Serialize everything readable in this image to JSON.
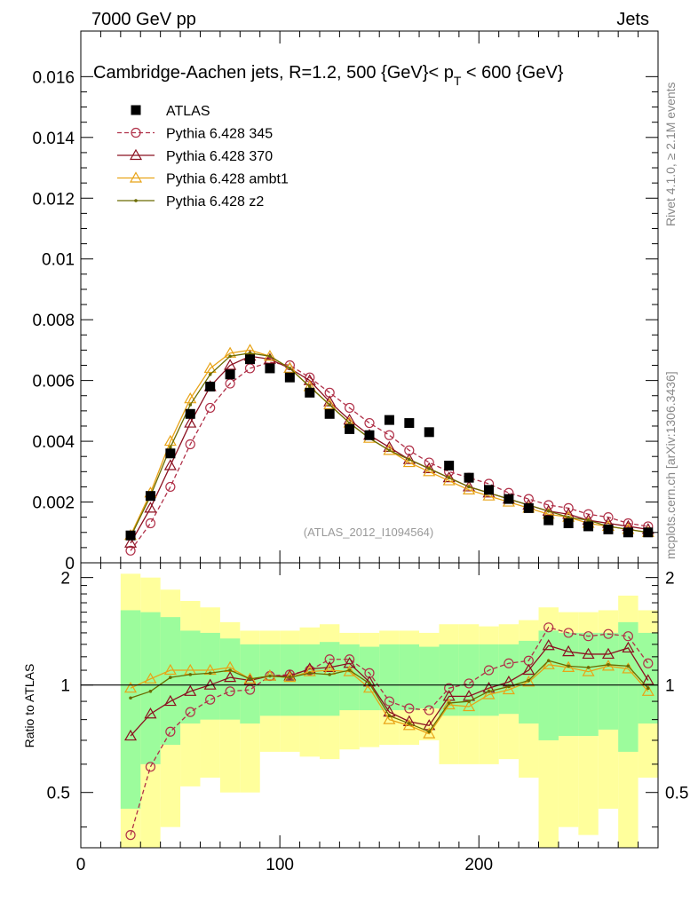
{
  "header": {
    "left": "7000 GeV pp",
    "right": "Jets"
  },
  "side_labels": {
    "rivet": "Rivet 4.1.0, ≥ 2.1M events",
    "mcplots": "mcplots.cern.ch [arXiv:1306.3436]"
  },
  "chart_data": [
    {
      "type": "scatter",
      "panel": "main",
      "title": "Cambridge-Aachen jets, R=1.2, 500 {GeV}< p_T < 600 {GeV}",
      "title_parts": {
        "main": "Cambridge-Aachen jets, R=1.2, 500 {GeV}< p",
        "sub": "T",
        "tail": " < 600 {GeV}"
      },
      "watermark": "(ATLAS_2012_I1094564)",
      "xlim": [
        0,
        290
      ],
      "ylim": [
        0,
        0.0175
      ],
      "yticks": [
        0,
        0.002,
        0.004,
        0.006,
        0.008,
        0.01,
        0.012,
        0.014,
        0.016
      ],
      "ytick_labels": [
        "0",
        "0.002",
        "0.004",
        "0.006",
        "0.008",
        "0.01",
        "0.012",
        "0.014",
        "0.016"
      ],
      "x": [
        25,
        35,
        45,
        55,
        65,
        75,
        85,
        95,
        105,
        115,
        125,
        135,
        145,
        155,
        165,
        175,
        185,
        195,
        205,
        215,
        225,
        235,
        245,
        255,
        265,
        275,
        285
      ],
      "series": [
        {
          "name": "ATLAS",
          "color": "#000000",
          "marker": "square",
          "values": [
            0.0009,
            0.0022,
            0.0036,
            0.0049,
            0.0058,
            0.0062,
            0.0067,
            0.0064,
            0.0061,
            0.0056,
            0.0049,
            0.0044,
            0.0042,
            0.0047,
            0.0046,
            0.0043,
            0.0032,
            0.0028,
            0.0024,
            0.0021,
            0.0018,
            0.0014,
            0.0013,
            0.0012,
            0.0011,
            0.001,
            0.001
          ]
        },
        {
          "name": "Pythia 6.428 345",
          "color": "#b03048",
          "marker": "circle",
          "dashed": true,
          "values": [
            0.0004,
            0.0013,
            0.0025,
            0.0039,
            0.0051,
            0.0059,
            0.0064,
            0.0066,
            0.0065,
            0.0061,
            0.0056,
            0.0051,
            0.0046,
            0.0042,
            0.0037,
            0.0033,
            0.003,
            0.0028,
            0.0026,
            0.0023,
            0.0021,
            0.0019,
            0.0018,
            0.0016,
            0.0015,
            0.0013,
            0.0012
          ]
        },
        {
          "name": "Pythia 6.428 370",
          "color": "#8b1020",
          "marker": "triangle",
          "dashed": false,
          "values": [
            0.00065,
            0.0018,
            0.0032,
            0.0046,
            0.0058,
            0.0065,
            0.0068,
            0.0067,
            0.0064,
            0.006,
            0.0053,
            0.0047,
            0.0042,
            0.0038,
            0.0034,
            0.0031,
            0.0028,
            0.0025,
            0.0023,
            0.0021,
            0.0019,
            0.0017,
            0.0016,
            0.0014,
            0.0013,
            0.0012,
            0.0011
          ]
        },
        {
          "name": "Pythia 6.428 ambt1",
          "color": "#e8a317",
          "marker": "triangle",
          "dashed": false,
          "values": [
            0.0009,
            0.0023,
            0.004,
            0.0054,
            0.0064,
            0.0069,
            0.007,
            0.0068,
            0.0064,
            0.0058,
            0.0052,
            0.0046,
            0.0041,
            0.0037,
            0.0033,
            0.003,
            0.0027,
            0.0024,
            0.0022,
            0.002,
            0.0018,
            0.0016,
            0.0015,
            0.0013,
            0.0012,
            0.0011,
            0.001
          ]
        },
        {
          "name": "Pythia 6.428 z2",
          "color": "#6b6b00",
          "marker": "dot",
          "dashed": false,
          "values": [
            0.00085,
            0.0022,
            0.0038,
            0.0052,
            0.0062,
            0.0068,
            0.0069,
            0.0068,
            0.0064,
            0.0058,
            0.0052,
            0.0046,
            0.0041,
            0.0037,
            0.0034,
            0.0031,
            0.0028,
            0.0025,
            0.0023,
            0.0021,
            0.0019,
            0.0017,
            0.0015,
            0.0014,
            0.0012,
            0.0011,
            0.001
          ]
        }
      ]
    },
    {
      "type": "line",
      "panel": "ratio",
      "ylabel": "Ratio to ATLAS",
      "xlabel": "",
      "xlim": [
        0,
        290
      ],
      "ylim": [
        0.35,
        2.2
      ],
      "xticks": [
        0,
        100,
        200
      ],
      "xtick_labels": [
        "0",
        "100",
        "200"
      ],
      "yticks": [
        0.5,
        1,
        2
      ],
      "ytick_labels": [
        "0.5",
        "1",
        "2"
      ],
      "reference": 1,
      "band_edges": [
        20,
        30,
        40,
        50,
        60,
        70,
        80,
        90,
        100,
        110,
        120,
        130,
        140,
        150,
        160,
        170,
        180,
        190,
        200,
        210,
        220,
        230,
        240,
        250,
        260,
        270,
        280,
        290
      ],
      "band_yellow": [
        [
          0.35,
          2.05
        ],
        [
          0.35,
          2.0
        ],
        [
          0.4,
          1.85
        ],
        [
          0.52,
          1.72
        ],
        [
          0.55,
          1.65
        ],
        [
          0.5,
          1.5
        ],
        [
          0.5,
          1.42
        ],
        [
          0.65,
          1.42
        ],
        [
          0.65,
          1.42
        ],
        [
          0.63,
          1.45
        ],
        [
          0.62,
          1.48
        ],
        [
          0.66,
          1.4
        ],
        [
          0.67,
          1.4
        ],
        [
          0.68,
          1.42
        ],
        [
          0.68,
          1.42
        ],
        [
          0.7,
          1.4
        ],
        [
          0.6,
          1.48
        ],
        [
          0.6,
          1.48
        ],
        [
          0.6,
          1.46
        ],
        [
          0.62,
          1.48
        ],
        [
          0.55,
          1.52
        ],
        [
          0.35,
          1.65
        ],
        [
          0.4,
          1.6
        ],
        [
          0.38,
          1.6
        ],
        [
          0.45,
          1.62
        ],
        [
          0.35,
          1.78
        ],
        [
          0.55,
          1.62
        ]
      ],
      "band_green": [
        [
          0.45,
          1.62
        ],
        [
          0.6,
          1.6
        ],
        [
          0.68,
          1.55
        ],
        [
          0.78,
          1.42
        ],
        [
          0.8,
          1.4
        ],
        [
          0.8,
          1.35
        ],
        [
          0.78,
          1.3
        ],
        [
          0.82,
          1.3
        ],
        [
          0.82,
          1.3
        ],
        [
          0.82,
          1.3
        ],
        [
          0.82,
          1.32
        ],
        [
          0.85,
          1.3
        ],
        [
          0.85,
          1.28
        ],
        [
          0.85,
          1.3
        ],
        [
          0.85,
          1.3
        ],
        [
          0.86,
          1.28
        ],
        [
          0.82,
          1.3
        ],
        [
          0.82,
          1.3
        ],
        [
          0.82,
          1.3
        ],
        [
          0.83,
          1.3
        ],
        [
          0.78,
          1.33
        ],
        [
          0.7,
          1.42
        ],
        [
          0.72,
          1.4
        ],
        [
          0.72,
          1.4
        ],
        [
          0.75,
          1.4
        ],
        [
          0.65,
          1.5
        ],
        [
          0.78,
          1.4
        ]
      ],
      "series": [
        {
          "name": "Pythia 6.428 345",
          "values": [
            0.38,
            0.59,
            0.74,
            0.84,
            0.91,
            0.96,
            0.97,
            1.06,
            1.07,
            1.1,
            1.18,
            1.18,
            1.08,
            0.9,
            0.86,
            0.85,
            0.98,
            1.01,
            1.1,
            1.15,
            1.17,
            1.45,
            1.4,
            1.37,
            1.39,
            1.37,
            1.15
          ]
        },
        {
          "name": "Pythia 6.428 370",
          "values": [
            0.72,
            0.83,
            0.9,
            0.96,
            1.0,
            1.05,
            1.03,
            1.06,
            1.06,
            1.11,
            1.12,
            1.15,
            1.02,
            0.84,
            0.79,
            0.77,
            0.93,
            0.93,
            0.98,
            1.02,
            1.1,
            1.29,
            1.24,
            1.22,
            1.22,
            1.27,
            1.03
          ]
        },
        {
          "name": "Pythia 6.428 ambt1",
          "values": [
            0.98,
            1.04,
            1.1,
            1.1,
            1.1,
            1.12,
            1.04,
            1.06,
            1.05,
            1.09,
            1.1,
            1.09,
            0.98,
            0.8,
            0.77,
            0.73,
            0.88,
            0.87,
            0.94,
            0.97,
            1.02,
            1.14,
            1.12,
            1.09,
            1.13,
            1.11,
            0.96
          ]
        },
        {
          "name": "Pythia 6.428 z2",
          "values": [
            0.92,
            0.96,
            1.05,
            1.07,
            1.08,
            1.1,
            1.04,
            1.06,
            1.05,
            1.08,
            1.07,
            1.1,
            1.01,
            0.82,
            0.78,
            0.74,
            0.89,
            0.9,
            0.96,
            0.99,
            1.03,
            1.17,
            1.13,
            1.12,
            1.14,
            1.13,
            0.98
          ]
        }
      ]
    }
  ]
}
